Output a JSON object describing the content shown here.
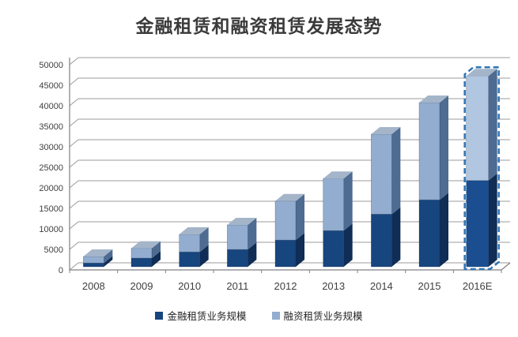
{
  "title": {
    "text": "金融租赁和融资租赁发展态势"
  },
  "chart_data": {
    "type": "bar",
    "stacked": true,
    "style": "3d-column",
    "title": "金融租赁和融资租赁发展态势",
    "categories": [
      "2008",
      "2009",
      "2010",
      "2011",
      "2012",
      "2013",
      "2014",
      "2015",
      "2016E"
    ],
    "series": [
      {
        "name": "金融租赁业务规模",
        "color": "#17457e",
        "side_color": "#0f2d55",
        "top_color": "#5a7494",
        "values": [
          900,
          2100,
          3600,
          4200,
          6500,
          8800,
          12800,
          16300,
          21000
        ]
      },
      {
        "name": "融资租赁业务规模",
        "color": "#92adcf",
        "side_color": "#4e6b91",
        "top_color": "#a4b5c9",
        "values": [
          1600,
          2400,
          4300,
          6000,
          9500,
          12700,
          19500,
          23700,
          25500
        ]
      }
    ],
    "xlabel": "",
    "ylabel": "",
    "ylim": [
      0,
      50000
    ],
    "ytick_step": 5000,
    "yticks": [
      0,
      5000,
      10000,
      15000,
      20000,
      25000,
      30000,
      35000,
      40000,
      45000,
      50000
    ],
    "grid": true,
    "legend_position": "bottom",
    "highlight": {
      "category": "2016E",
      "style": "dashed-outline",
      "outline_color": "#2e75b6",
      "fill_dark": "#1a4e90",
      "fill_light": "#b0c6e1"
    }
  },
  "legend": {
    "items": [
      {
        "label": "金融租赁业务规模",
        "color": "#17457e"
      },
      {
        "label": "融资租赁业务规模",
        "color": "#92adcf"
      }
    ]
  },
  "axis": {
    "tick_color": "#808080",
    "grid_color": "#9b9b9b",
    "label_color": "#404040"
  }
}
